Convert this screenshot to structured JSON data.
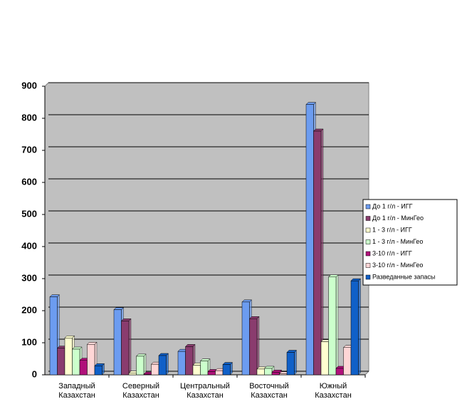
{
  "chart_data": {
    "type": "bar",
    "categories": [
      "Западный Казахстан",
      "Северный Казахстан",
      "Центральный Казахстан",
      "Восточный Казахстан",
      "Южный Казахстан"
    ],
    "series": [
      {
        "name": "До 1 г/л - ИГГ",
        "color": "#6c9cf0",
        "values": [
          243,
          203,
          73,
          227,
          843
        ]
      },
      {
        "name": "До 1 г/л - МинГео",
        "color": "#8a3c6e",
        "values": [
          83,
          168,
          88,
          175,
          760
        ]
      },
      {
        "name": "1 - 3 г/л - ИГГ",
        "color": "#ffffd0",
        "values": [
          115,
          5,
          30,
          18,
          103
        ]
      },
      {
        "name": "1 - 3 г/л - МинГео",
        "color": "#ccffcc",
        "values": [
          80,
          58,
          43,
          20,
          305
        ]
      },
      {
        "name": "3-10 г/л - ИГГ",
        "color": "#b0107a",
        "values": [
          45,
          2,
          10,
          8,
          20
        ]
      },
      {
        "name": "3-10 г/л - МинГео",
        "color": "#ffd6d6",
        "values": [
          95,
          33,
          13,
          3,
          85
        ]
      },
      {
        "name": "Разведанные запасы",
        "color": "#1060c8",
        "values": [
          28,
          60,
          32,
          70,
          293
        ]
      }
    ],
    "ylim": [
      0,
      900
    ],
    "yticks": [
      0,
      100,
      200,
      300,
      400,
      500,
      600,
      700,
      800,
      900
    ],
    "grid": true
  }
}
